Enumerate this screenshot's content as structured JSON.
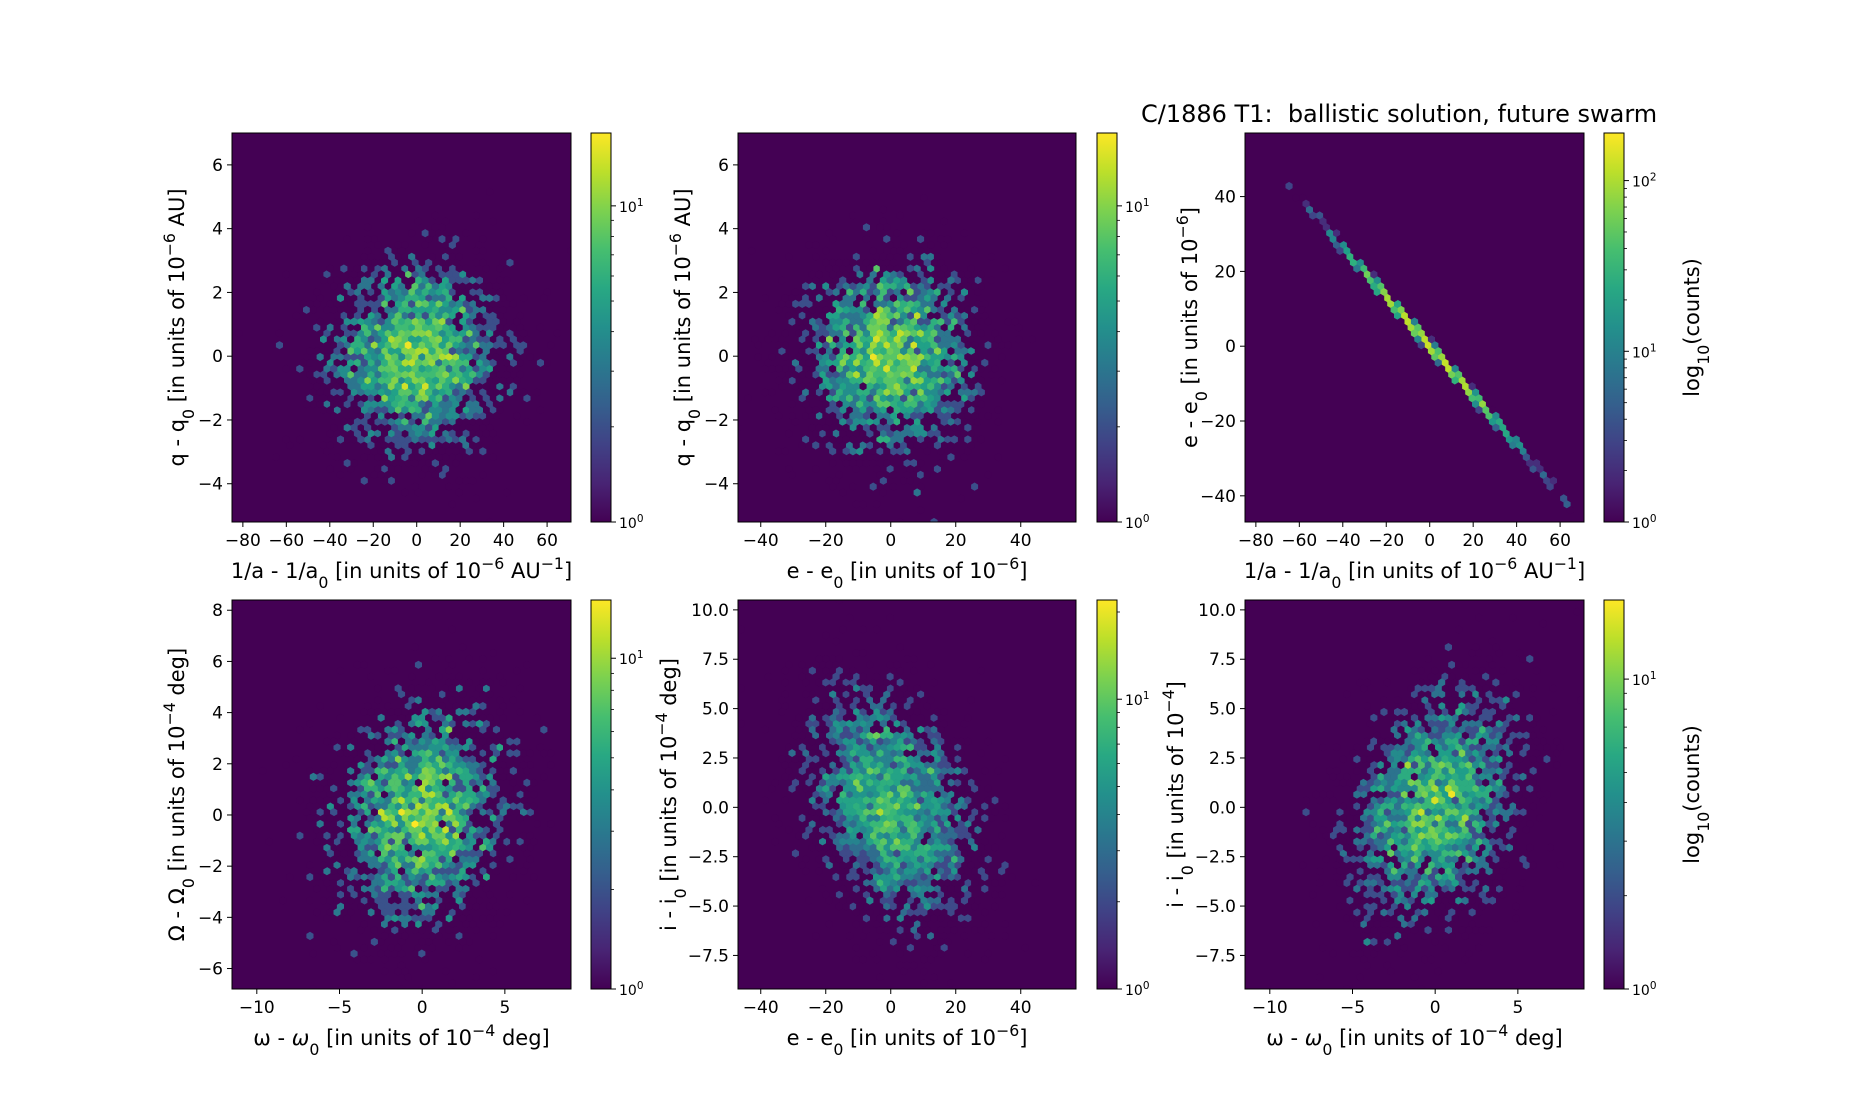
{
  "figure": {
    "title": "C/1886 T1:  ballistic solution, future swarm"
  },
  "chart_data": [
    {
      "type": "heatmap",
      "subtype": "hexbin",
      "panel": "top-left",
      "xlabel": "1/a - 1/a0 [in units of 10^-6 AU^-1]",
      "ylabel": "q - q0 [in units of 10^-6 AU]",
      "xlim": [
        -85,
        71
      ],
      "ylim": [
        -5.2,
        7.0
      ],
      "xticks": [
        "−80",
        "−60",
        "−40",
        "−20",
        "0",
        "20",
        "40",
        "60"
      ],
      "xtick_values": [
        -80,
        -60,
        -40,
        -20,
        0,
        20,
        40,
        60
      ],
      "yticks": [
        "−4",
        "−2",
        "0",
        "2",
        "4",
        "6"
      ],
      "ytick_values": [
        -4,
        -2,
        0,
        2,
        4,
        6
      ],
      "distribution": {
        "x_mean": 0,
        "x_sigma": 20,
        "y_mean": 0,
        "y_sigma": 1.5,
        "correlation": 0.0
      },
      "colorbar": {
        "scale": "log",
        "min": 1,
        "max": 17,
        "ticks": [
          "10^0",
          "10^1"
        ],
        "tick_values": [
          1,
          10
        ],
        "label": ""
      }
    },
    {
      "type": "heatmap",
      "subtype": "hexbin",
      "panel": "top-middle",
      "xlabel": "e - e0 [in units of 10^-6]",
      "ylabel": "q - q0 [in units of 10^-6 AU]",
      "xlim": [
        -47,
        57
      ],
      "ylim": [
        -5.2,
        7.0
      ],
      "xticks": [
        "−40",
        "−20",
        "0",
        "20",
        "40"
      ],
      "xtick_values": [
        -40,
        -20,
        0,
        20,
        40
      ],
      "yticks": [
        "−4",
        "−2",
        "0",
        "2",
        "4",
        "6"
      ],
      "ytick_values": [
        -4,
        -2,
        0,
        2,
        4,
        6
      ],
      "distribution": {
        "x_mean": 0,
        "x_sigma": 13,
        "y_mean": 0,
        "y_sigma": 1.5,
        "correlation": 0.0
      },
      "colorbar": {
        "scale": "log",
        "min": 1,
        "max": 17,
        "ticks": [
          "10^0",
          "10^1"
        ],
        "tick_values": [
          1,
          10
        ],
        "label": ""
      }
    },
    {
      "type": "heatmap",
      "subtype": "hexbin",
      "panel": "top-right",
      "xlabel": "1/a - 1/a0 [in units of 10^-6 AU^-1]",
      "ylabel": "e - e0 [in units of 10^-6]",
      "xlim": [
        -85,
        71
      ],
      "ylim": [
        -47,
        57
      ],
      "xticks": [
        "−80",
        "−60",
        "−40",
        "−20",
        "0",
        "20",
        "40",
        "60"
      ],
      "xtick_values": [
        -80,
        -60,
        -40,
        -20,
        0,
        20,
        40,
        60
      ],
      "yticks": [
        "−40",
        "−20",
        "0",
        "20",
        "40"
      ],
      "ytick_values": [
        -40,
        -20,
        0,
        20,
        40
      ],
      "distribution": {
        "x_mean": 0,
        "x_sigma": 20,
        "y_mean": 0,
        "y_sigma": 13,
        "correlation": -1.0,
        "slope": -0.66
      },
      "colorbar": {
        "scale": "log",
        "min": 1,
        "max": 190,
        "ticks": [
          "10^0",
          "10^1",
          "10^2"
        ],
        "tick_values": [
          1,
          10,
          100
        ],
        "label": "log10(counts)"
      }
    },
    {
      "type": "heatmap",
      "subtype": "hexbin",
      "panel": "bottom-left",
      "xlabel": "ω - ω0 [in units of 10^-4 deg]",
      "ylabel": "Ω - Ω0 [in units of 10^-4 deg]",
      "xlim": [
        -11.5,
        9
      ],
      "ylim": [
        -6.8,
        8.4
      ],
      "xticks": [
        "−10",
        "−5",
        "0",
        "5"
      ],
      "xtick_values": [
        -10,
        -5,
        0,
        5
      ],
      "yticks": [
        "−6",
        "−4",
        "−2",
        "0",
        "2",
        "4",
        "6",
        "8"
      ],
      "ytick_values": [
        -6,
        -4,
        -2,
        0,
        2,
        4,
        6,
        8
      ],
      "distribution": {
        "x_mean": 0,
        "x_sigma": 2.6,
        "y_mean": 0,
        "y_sigma": 2.2,
        "correlation": 0.15
      },
      "colorbar": {
        "scale": "log",
        "min": 1,
        "max": 15,
        "ticks": [
          "10^0",
          "10^1"
        ],
        "tick_values": [
          1,
          10
        ],
        "label": ""
      }
    },
    {
      "type": "heatmap",
      "subtype": "hexbin",
      "panel": "bottom-middle",
      "xlabel": "e - e0 [in units of 10^-6]",
      "ylabel": "i - i0 [in units of 10^-4 deg]",
      "xlim": [
        -47,
        57
      ],
      "ylim": [
        -9.2,
        10.5
      ],
      "xticks": [
        "−40",
        "−20",
        "0",
        "20",
        "40"
      ],
      "xtick_values": [
        -40,
        -20,
        0,
        20,
        40
      ],
      "yticks": [
        "−7.5",
        "−5.0",
        "−2.5",
        "0.0",
        "2.5",
        "5.0",
        "7.5",
        "10.0"
      ],
      "ytick_values": [
        -7.5,
        -5.0,
        -2.5,
        0.0,
        2.5,
        5.0,
        7.5,
        10.0
      ],
      "distribution": {
        "x_mean": 0,
        "x_sigma": 13,
        "y_mean": 0,
        "y_sigma": 3.0,
        "correlation": -0.3
      },
      "colorbar": {
        "scale": "log",
        "min": 1,
        "max": 22,
        "ticks": [
          "10^0",
          "10^1"
        ],
        "tick_values": [
          1,
          10
        ],
        "label": ""
      }
    },
    {
      "type": "heatmap",
      "subtype": "hexbin",
      "panel": "bottom-right",
      "xlabel": "ω - ω0 [in units of 10^-4 deg]",
      "ylabel": "i - i0 [in units of 10^-4]",
      "xlim": [
        -11.5,
        9
      ],
      "ylim": [
        -9.2,
        10.5
      ],
      "xticks": [
        "−10",
        "−5",
        "0",
        "5"
      ],
      "xtick_values": [
        -10,
        -5,
        0,
        5
      ],
      "yticks": [
        "−7.5",
        "−5.0",
        "−2.5",
        "0.0",
        "2.5",
        "5.0",
        "7.5",
        "10.0"
      ],
      "ytick_values": [
        -7.5,
        -5.0,
        -2.5,
        0.0,
        2.5,
        5.0,
        7.5,
        10.0
      ],
      "distribution": {
        "x_mean": 0,
        "x_sigma": 2.6,
        "y_mean": 0,
        "y_sigma": 3.0,
        "correlation": 0.3
      },
      "colorbar": {
        "scale": "log",
        "min": 1,
        "max": 18,
        "ticks": [
          "10^0",
          "10^1"
        ],
        "tick_values": [
          1,
          10
        ],
        "label": "log10(counts)"
      }
    }
  ],
  "colors": {
    "background_bin": "#440154",
    "viridis": [
      "#440154",
      "#482878",
      "#3e4989",
      "#31688e",
      "#26828e",
      "#1f9e89",
      "#35b779",
      "#6ece58",
      "#b5de2b",
      "#fde725"
    ]
  }
}
